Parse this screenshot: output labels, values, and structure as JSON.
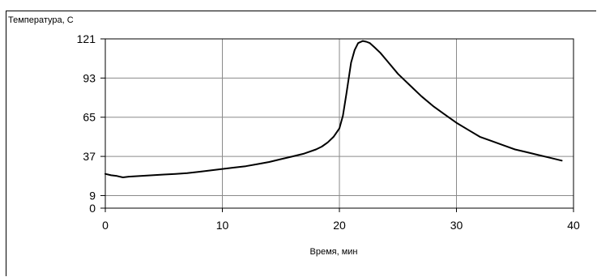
{
  "chart_data": {
    "type": "line",
    "title": "",
    "ylabel": "Температура, С",
    "xlabel": "Время, мин",
    "xlim": [
      0,
      40
    ],
    "ylim": [
      0,
      121
    ],
    "x_ticks": [
      0,
      10,
      20,
      30,
      40
    ],
    "y_ticks": [
      0,
      9,
      37,
      65,
      93,
      121
    ],
    "grid": true,
    "legend": "none",
    "line_color": "#000000",
    "series": [
      {
        "x": [
          0,
          0.5,
          1,
          1.5,
          2,
          3,
          4,
          5,
          6,
          7,
          8,
          9,
          10,
          11,
          12,
          13,
          14,
          15,
          16,
          17,
          18,
          18.5,
          19,
          19.5,
          20,
          20.3,
          20.6,
          21,
          21.3,
          21.6,
          22,
          22.3,
          22.6,
          23,
          23.5,
          24,
          25,
          26,
          27,
          28,
          29,
          30,
          31,
          32,
          33,
          34,
          35,
          36,
          37,
          38,
          39
        ],
        "y": [
          24.5,
          23.5,
          23,
          22,
          22.5,
          23,
          23.5,
          24,
          24.5,
          25,
          26,
          27,
          28,
          29,
          30,
          31.5,
          33,
          35,
          37,
          39,
          42,
          44,
          47,
          51,
          57,
          66,
          82,
          104,
          113,
          118,
          119.5,
          119,
          118,
          115,
          111,
          106,
          96,
          88,
          80,
          73,
          67,
          61,
          56,
          51,
          48,
          45,
          42,
          40,
          38,
          36,
          34
        ]
      }
    ]
  }
}
